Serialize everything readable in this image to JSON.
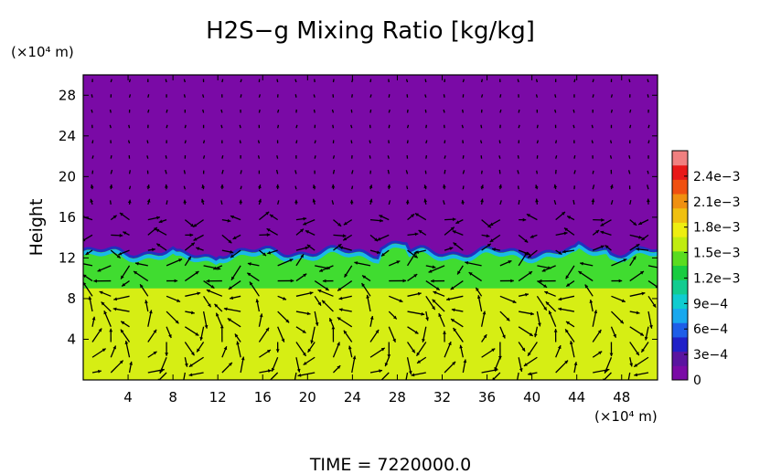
{
  "chart_data": {
    "type": "heatmap",
    "title": "H2S−g Mixing Ratio [kg/kg]",
    "ylabel": "Height",
    "x_unit_label": "(×10⁴ m)",
    "y_unit_label": "(×10⁴ m)",
    "time_label": "TIME  =  7220000.0",
    "xlim": [
      0,
      51.2
    ],
    "ylim": [
      0,
      30
    ],
    "x_ticks": [
      4,
      8,
      12,
      16,
      20,
      24,
      28,
      32,
      36,
      40,
      44,
      48
    ],
    "x_tick_labels": [
      "4",
      "8",
      "12",
      "16",
      "20",
      "24",
      "28",
      "32",
      "36",
      "40",
      "44",
      "48"
    ],
    "y_ticks": [
      4,
      8,
      12,
      16,
      20,
      24,
      28
    ],
    "y_tick_labels": [
      "4",
      "8",
      "12",
      "16",
      "20",
      "24",
      "28"
    ],
    "colorbar": {
      "min": 0,
      "max": 0.0027,
      "tick_values": [
        0,
        0.0003,
        0.0006,
        0.0009,
        0.0012,
        0.0015,
        0.0018,
        0.0021,
        0.0024
      ],
      "tick_labels": [
        "0",
        "3e−4",
        "6e−4",
        "9e−4",
        "1.2e−3",
        "1.5e−3",
        "1.8e−3",
        "2.1e−3",
        "2.4e−3"
      ],
      "colors": [
        "#7a0aa6",
        "#5a14a0",
        "#2020c8",
        "#1e5ee8",
        "#19a8ee",
        "#10ccd0",
        "#12cc90",
        "#18cc40",
        "#5adc20",
        "#c0ec10",
        "#eeee10",
        "#f0c010",
        "#f09010",
        "#f05010",
        "#e81818",
        "#f08080"
      ]
    },
    "field_summary": {
      "layer_value": 0.0017,
      "transition_value": 0.0013,
      "above_value": 0.0,
      "interface_height": 12.5,
      "transition_bottom": 9.0
    }
  }
}
